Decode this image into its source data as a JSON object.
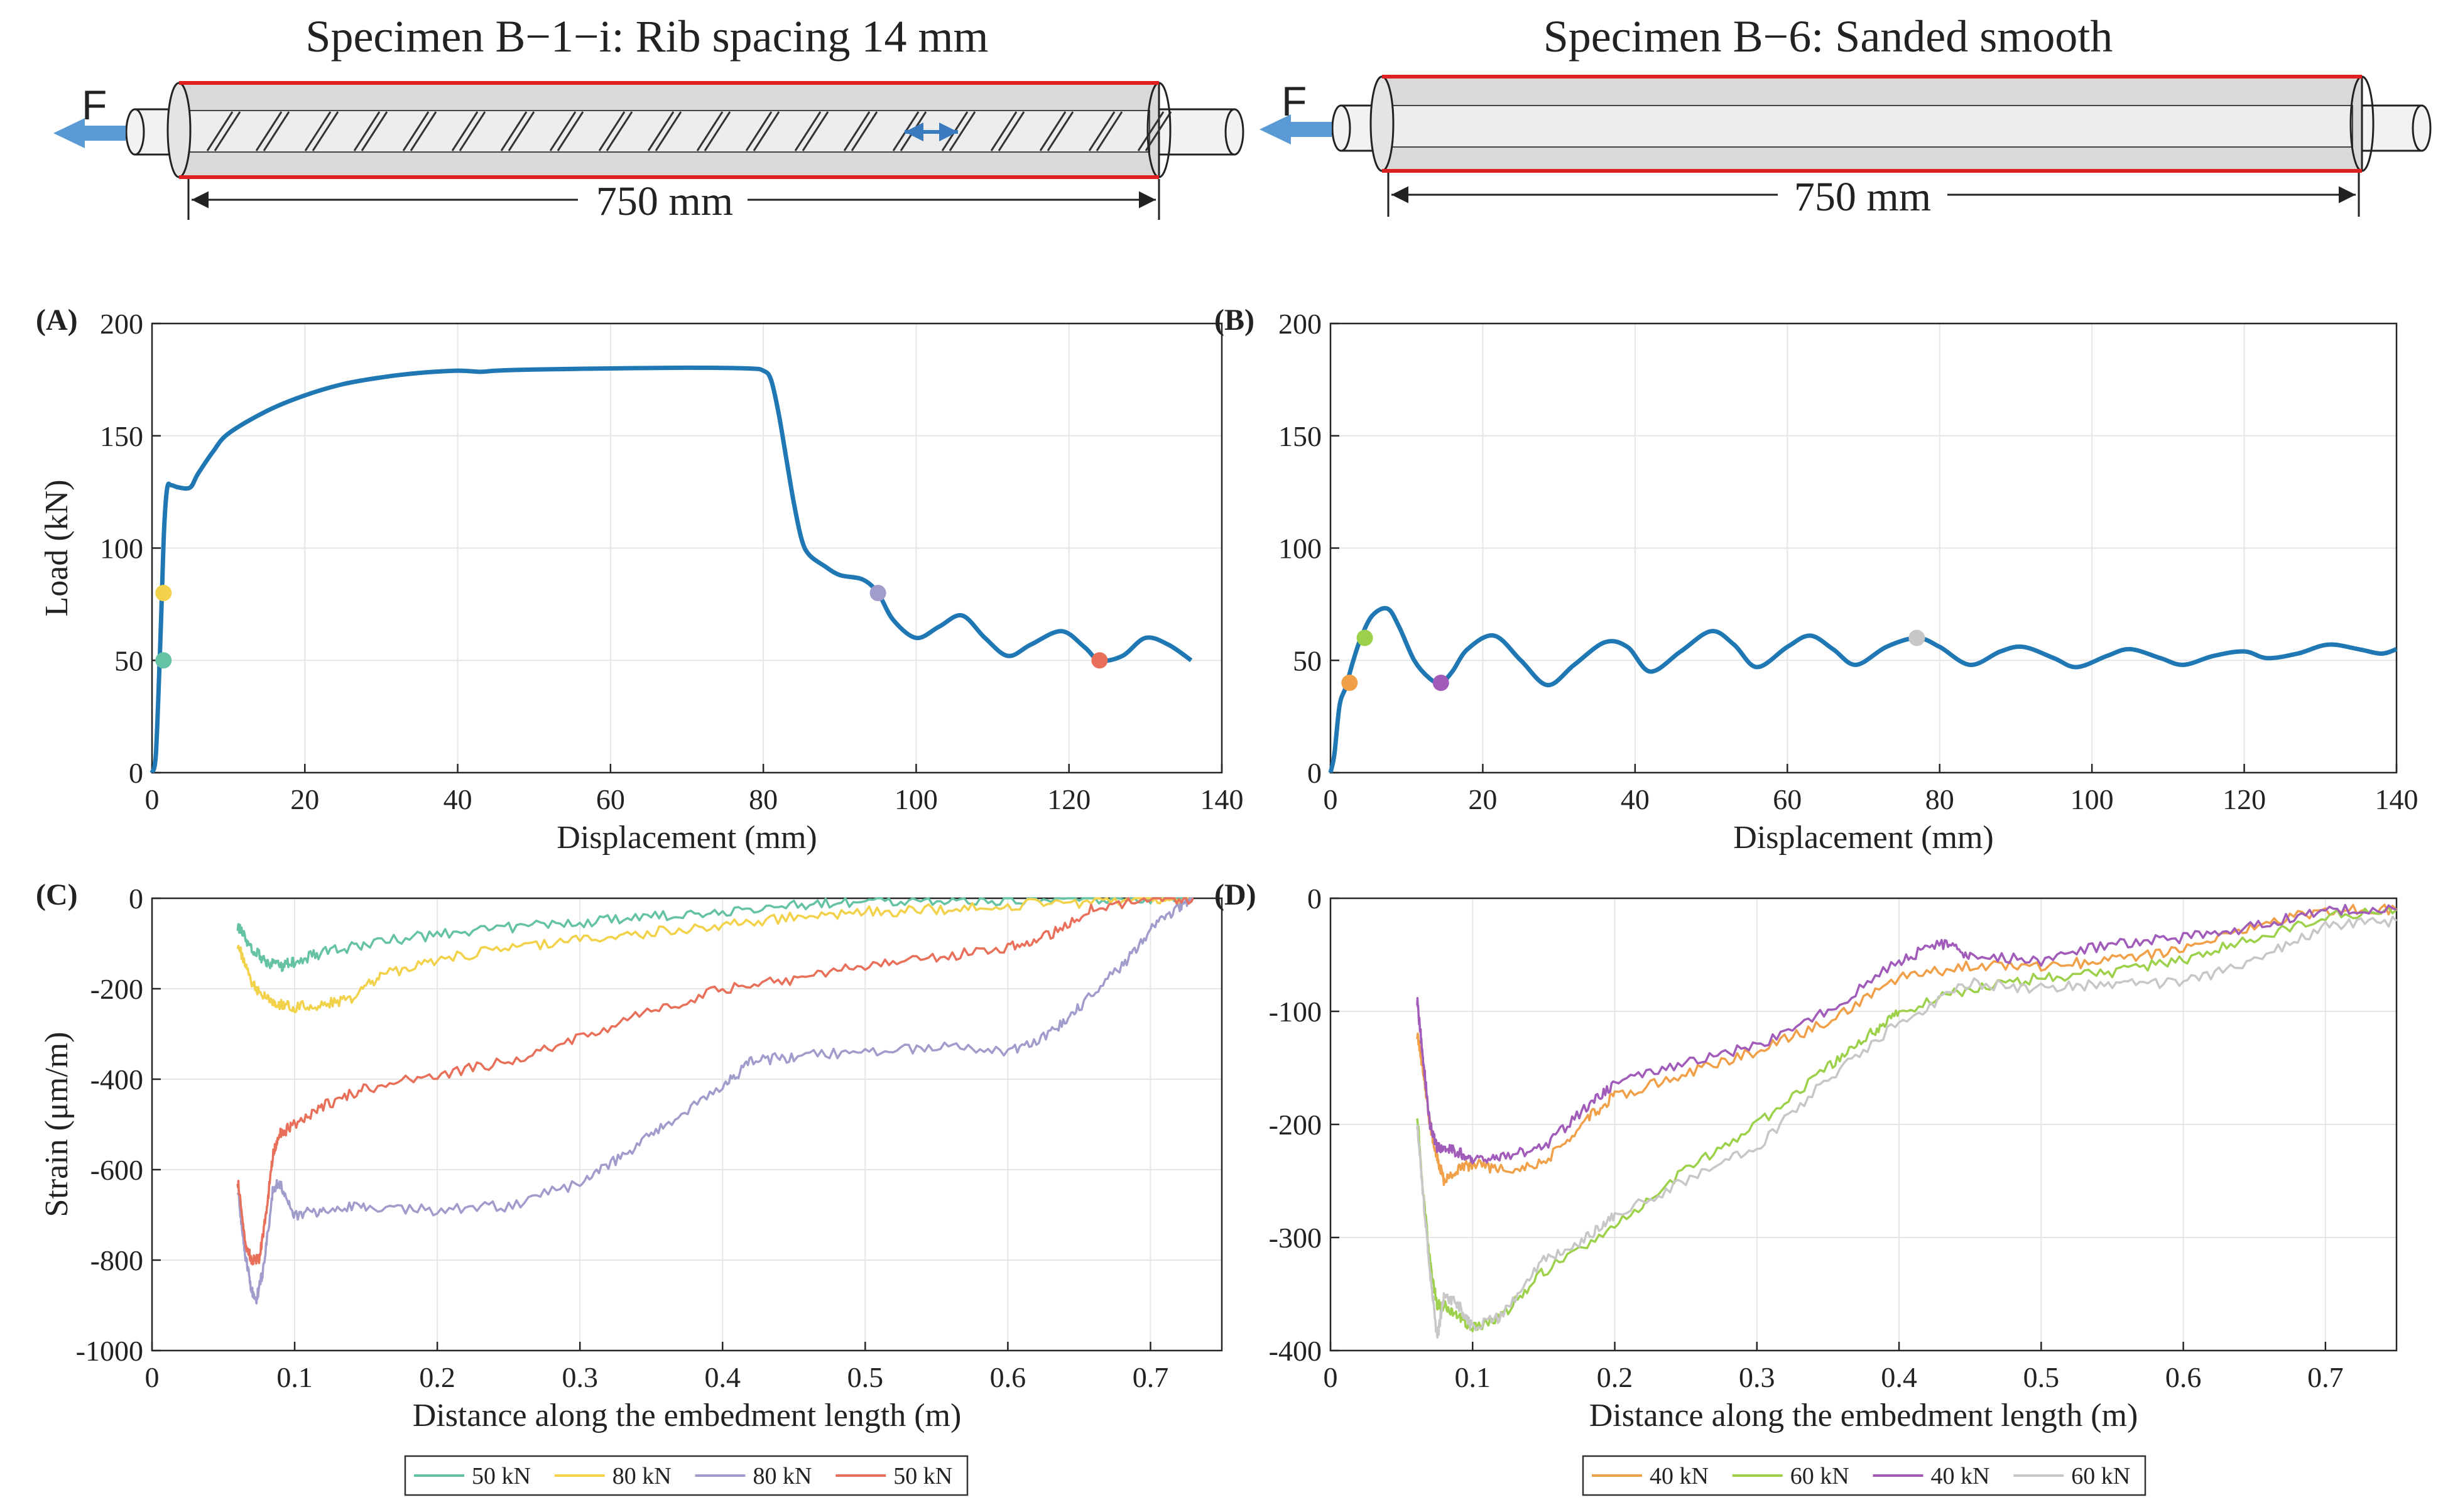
{
  "specimens": [
    {
      "title": "Specimen B−1−i: Rib spacing 14 mm",
      "force_label": "F",
      "length_label": "750 mm",
      "surface": "ribbed"
    },
    {
      "title": "Specimen B−6: Sanded smooth",
      "force_label": "F",
      "length_label": "750 mm",
      "surface": "smooth"
    }
  ],
  "colors": {
    "load_curve": "#1f77b4",
    "c_50kN_a": "#66c2a5",
    "c_80kN_a": "#f2d24b",
    "c_80kN_b": "#a09ccc",
    "c_50kN_b": "#e8705a",
    "d_40kN_a": "#f0a049",
    "d_60kN_a": "#9dd04b",
    "d_40kN_b": "#a15cba",
    "d_60kN_b": "#c7c7c7",
    "embed_red": "#e02020",
    "arrow_blue": "#5b9bd5"
  },
  "chart_data": [
    {
      "panel": "(A)",
      "type": "line",
      "xlabel": "Displacement (mm)",
      "ylabel": "Load (kN)",
      "xlim": [
        0,
        140
      ],
      "ylim": [
        0,
        200
      ],
      "xticks": [
        0,
        20,
        40,
        60,
        80,
        100,
        120,
        140
      ],
      "yticks": [
        0,
        50,
        100,
        150,
        200
      ],
      "grid": true,
      "series": [
        {
          "name": "Load",
          "color": "#1f77b4",
          "x": [
            0,
            0.5,
            1.0,
            1.3,
            1.6,
            2.0,
            2.5,
            3.5,
            5,
            6,
            8,
            10,
            15,
            20,
            25,
            30,
            35,
            40,
            43,
            45,
            50,
            60,
            70,
            78,
            80,
            81,
            82,
            83,
            84,
            85,
            86,
            88,
            90,
            93,
            95,
            97,
            100,
            103,
            106,
            109,
            112,
            115,
            119,
            122,
            124,
            127,
            130,
            133,
            136
          ],
          "y": [
            0,
            8,
            50,
            80,
            110,
            127,
            128,
            127,
            127,
            133,
            143,
            151,
            161,
            168,
            173,
            176,
            178,
            179,
            178.5,
            179,
            179.5,
            180,
            180.3,
            180,
            179,
            175,
            160,
            140,
            120,
            104,
            97,
            92,
            88,
            86,
            80,
            68,
            60,
            65,
            70,
            60,
            52,
            57,
            63,
            56,
            50,
            52,
            60,
            57,
            50
          ]
        }
      ],
      "markers": [
        {
          "x": 1.5,
          "y": 80,
          "color": "#f2d24b"
        },
        {
          "x": 1.5,
          "y": 50,
          "color": "#66c2a5"
        },
        {
          "x": 95,
          "y": 80,
          "color": "#a09ccc"
        },
        {
          "x": 124,
          "y": 50,
          "color": "#e8705a"
        }
      ]
    },
    {
      "panel": "(B)",
      "type": "line",
      "xlabel": "Displacement (mm)",
      "ylabel": "",
      "xlim": [
        0,
        140
      ],
      "ylim": [
        0,
        200
      ],
      "xticks": [
        0,
        20,
        40,
        60,
        80,
        100,
        120,
        140
      ],
      "yticks": [
        0,
        50,
        100,
        150,
        200
      ],
      "grid": true,
      "series": [
        {
          "name": "Load",
          "color": "#1f77b4",
          "x": [
            0,
            0.5,
            1.2,
            2,
            3,
            4,
            5.5,
            7.5,
            9,
            11,
            13,
            14.5,
            16,
            18,
            21.5,
            25,
            28.5,
            32,
            36,
            39,
            42,
            46,
            50,
            53,
            56,
            60,
            63,
            66,
            69,
            73,
            77,
            80,
            84,
            88,
            91,
            95,
            98,
            102,
            105,
            109,
            112,
            116,
            120,
            123,
            127,
            131,
            135,
            138,
            140
          ],
          "y": [
            0,
            8,
            30,
            38,
            50,
            60,
            70,
            73,
            65,
            50,
            42,
            40,
            45,
            55,
            61,
            50,
            39,
            48,
            58,
            56,
            45,
            54,
            63,
            57,
            47,
            56,
            61,
            55,
            48,
            56,
            60,
            56,
            48,
            54,
            56,
            51,
            47,
            52,
            55,
            51,
            48,
            52,
            54,
            51,
            53,
            57,
            55,
            53,
            55
          ]
        }
      ],
      "markers": [
        {
          "x": 2.5,
          "y": 40,
          "color": "#f0a049"
        },
        {
          "x": 4.5,
          "y": 60,
          "color": "#9dd04b"
        },
        {
          "x": 14.5,
          "y": 40,
          "color": "#a15cba"
        },
        {
          "x": 77,
          "y": 60,
          "color": "#c7c7c7"
        }
      ]
    },
    {
      "panel": "(C)",
      "type": "line",
      "xlabel": "Distance along the embedment length (m)",
      "ylabel": "Strain (μm/m)",
      "xlim": [
        0,
        0.75
      ],
      "ylim": [
        -1000,
        0
      ],
      "xticks": [
        0,
        0.1,
        0.2,
        0.3,
        0.4,
        0.5,
        0.6,
        0.7
      ],
      "yticks": [
        -1000,
        -800,
        -600,
        -400,
        -200,
        0
      ],
      "grid": true,
      "series": [
        {
          "name": "50 kN",
          "color": "#66c2a5",
          "x": [
            0.06,
            0.07,
            0.08,
            0.09,
            0.1,
            0.12,
            0.15,
            0.2,
            0.25,
            0.3,
            0.35,
            0.4,
            0.45,
            0.5,
            0.55,
            0.6,
            0.65,
            0.7,
            0.73
          ],
          "y": [
            -60,
            -110,
            -140,
            -150,
            -140,
            -120,
            -100,
            -80,
            -65,
            -55,
            -40,
            -30,
            -15,
            -5,
            -5,
            -5,
            0,
            0,
            0
          ]
        },
        {
          "name": "80 kN",
          "color": "#f2d24b",
          "x": [
            0.06,
            0.07,
            0.08,
            0.09,
            0.1,
            0.12,
            0.14,
            0.16,
            0.2,
            0.25,
            0.3,
            0.35,
            0.4,
            0.45,
            0.5,
            0.55,
            0.6,
            0.65,
            0.7,
            0.73
          ],
          "y": [
            -100,
            -190,
            -220,
            -235,
            -240,
            -235,
            -225,
            -170,
            -135,
            -110,
            -90,
            -75,
            -60,
            -40,
            -30,
            -25,
            -15,
            -10,
            0,
            0
          ]
        },
        {
          "name": "80 kN",
          "color": "#a09ccc",
          "x": [
            0.06,
            0.065,
            0.07,
            0.073,
            0.078,
            0.085,
            0.09,
            0.1,
            0.12,
            0.15,
            0.2,
            0.25,
            0.3,
            0.33,
            0.36,
            0.4,
            0.42,
            0.45,
            0.5,
            0.55,
            0.6,
            0.63,
            0.65,
            0.68,
            0.7,
            0.72,
            0.73
          ],
          "y": [
            -640,
            -780,
            -870,
            -890,
            -820,
            -640,
            -630,
            -700,
            -690,
            -680,
            -690,
            -680,
            -630,
            -570,
            -500,
            -420,
            -360,
            -350,
            -340,
            -330,
            -340,
            -300,
            -240,
            -150,
            -70,
            -20,
            0
          ]
        },
        {
          "name": "50 kN",
          "color": "#e8705a",
          "x": [
            0.06,
            0.065,
            0.07,
            0.075,
            0.08,
            0.085,
            0.09,
            0.1,
            0.12,
            0.15,
            0.2,
            0.25,
            0.3,
            0.35,
            0.4,
            0.45,
            0.5,
            0.55,
            0.6,
            0.63,
            0.66,
            0.7,
            0.73
          ],
          "y": [
            -620,
            -760,
            -800,
            -800,
            -700,
            -560,
            -520,
            -500,
            -460,
            -420,
            -390,
            -360,
            -310,
            -250,
            -200,
            -180,
            -150,
            -130,
            -110,
            -80,
            -20,
            0,
            0
          ]
        }
      ]
    },
    {
      "panel": "(D)",
      "type": "line",
      "xlabel": "Distance along the embedment length (m)",
      "ylabel": "",
      "xlim": [
        0,
        0.75
      ],
      "ylim": [
        -400,
        0
      ],
      "xticks": [
        0,
        0.1,
        0.2,
        0.3,
        0.4,
        0.5,
        0.6,
        0.7
      ],
      "yticks": [
        -400,
        -300,
        -200,
        -100,
        0
      ],
      "grid": true,
      "series": [
        {
          "name": "40 kN",
          "color": "#f0a049",
          "x": [
            0.061,
            0.065,
            0.07,
            0.075,
            0.08,
            0.09,
            0.1,
            0.12,
            0.15,
            0.18,
            0.2,
            0.25,
            0.3,
            0.35,
            0.4,
            0.45,
            0.5,
            0.55,
            0.6,
            0.65,
            0.7,
            0.75
          ],
          "y": [
            -120,
            -150,
            -200,
            -230,
            -250,
            -240,
            -235,
            -240,
            -235,
            -195,
            -175,
            -155,
            -135,
            -110,
            -70,
            -60,
            -60,
            -55,
            -45,
            -25,
            -10,
            -10
          ]
        },
        {
          "name": "60 kN",
          "color": "#9dd04b",
          "x": [
            0.061,
            0.065,
            0.07,
            0.075,
            0.08,
            0.09,
            0.1,
            0.12,
            0.15,
            0.2,
            0.25,
            0.3,
            0.35,
            0.38,
            0.4,
            0.45,
            0.5,
            0.55,
            0.6,
            0.65,
            0.7,
            0.75
          ],
          "y": [
            -190,
            -260,
            -320,
            -360,
            -360,
            -370,
            -380,
            -370,
            -330,
            -290,
            -240,
            -200,
            -150,
            -120,
            -100,
            -80,
            -70,
            -65,
            -55,
            -35,
            -15,
            -10
          ]
        },
        {
          "name": "40 kN",
          "color": "#a15cba",
          "x": [
            0.061,
            0.065,
            0.07,
            0.075,
            0.08,
            0.09,
            0.1,
            0.12,
            0.15,
            0.18,
            0.2,
            0.25,
            0.3,
            0.35,
            0.4,
            0.43,
            0.45,
            0.5,
            0.55,
            0.6,
            0.65,
            0.7,
            0.75
          ],
          "y": [
            -90,
            -140,
            -200,
            -220,
            -220,
            -225,
            -230,
            -230,
            -220,
            -185,
            -165,
            -145,
            -130,
            -100,
            -55,
            -40,
            -50,
            -55,
            -40,
            -35,
            -25,
            -10,
            -10
          ]
        },
        {
          "name": "60 kN",
          "color": "#c7c7c7",
          "x": [
            0.061,
            0.065,
            0.07,
            0.075,
            0.08,
            0.09,
            0.1,
            0.12,
            0.15,
            0.18,
            0.2,
            0.25,
            0.3,
            0.35,
            0.4,
            0.45,
            0.5,
            0.55,
            0.6,
            0.65,
            0.7,
            0.75
          ],
          "y": [
            -200,
            -260,
            -330,
            -390,
            -350,
            -360,
            -380,
            -370,
            -320,
            -300,
            -280,
            -250,
            -220,
            -160,
            -110,
            -75,
            -80,
            -75,
            -75,
            -55,
            -25,
            -20
          ]
        }
      ]
    }
  ]
}
